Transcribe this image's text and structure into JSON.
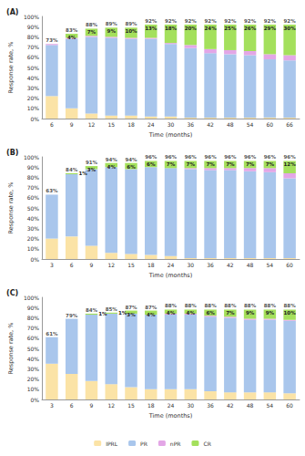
{
  "chart_data": [
    {
      "type": "bar",
      "title": "(A)",
      "x_label": "Time (months)",
      "y_label": "Response rate, %",
      "categories": [
        "6",
        "9",
        "12",
        "15",
        "18",
        "24",
        "30",
        "36",
        "42",
        "48",
        "54",
        "60",
        "66"
      ],
      "stacked": true,
      "data_labels": true,
      "grid": false,
      "ylim": [
        0,
        100
      ],
      "yticks": [
        {
          "value": 0,
          "label": "0%"
        },
        {
          "value": 10,
          "label": "10%"
        },
        {
          "value": 20,
          "label": "20%"
        },
        {
          "value": 30,
          "label": "30%"
        },
        {
          "value": 40,
          "label": "40%"
        },
        {
          "value": 50,
          "label": "50%"
        },
        {
          "value": 60,
          "label": "60%"
        },
        {
          "value": 70,
          "label": "70%"
        },
        {
          "value": 80,
          "label": "80%"
        },
        {
          "value": 90,
          "label": "90%"
        },
        {
          "value": 100,
          "label": "100%"
        }
      ],
      "total_labels": [
        "73%",
        "83%",
        "88%",
        "89%",
        "89%",
        "92%",
        "92%",
        "92%",
        "92%",
        "92%",
        "92%",
        "92%",
        "92%"
      ],
      "series": [
        {
          "name": "IPRL",
          "color": "#fbe3a6",
          "values": [
            22,
            10,
            5,
            3,
            3,
            2,
            2,
            1,
            1,
            1,
            1,
            1,
            1
          ]
        },
        {
          "name": "PR",
          "color": "#a9c6ec",
          "values": [
            50,
            68,
            75,
            76,
            75,
            76,
            71,
            68,
            63,
            62,
            61,
            57,
            56
          ]
        },
        {
          "name": "nPR",
          "color": "#e3a6e6",
          "values": [
            1,
            1,
            1,
            1,
            1,
            1,
            1,
            3,
            4,
            4,
            4,
            5,
            5
          ]
        },
        {
          "name": "CR",
          "color": "#a4e05c",
          "values": [
            0,
            4,
            7,
            9,
            10,
            13,
            18,
            20,
            24,
            25,
            26,
            29,
            30
          ],
          "value_labels": [
            null,
            "4%",
            "7%",
            "9%",
            "10%",
            "13%",
            "18%",
            "20%",
            "24%",
            "25%",
            "26%",
            "29%",
            "30%"
          ]
        }
      ]
    },
    {
      "type": "bar",
      "title": "(B)",
      "x_label": "Time (months)",
      "y_label": "Response rate, %",
      "categories": [
        "3",
        "6",
        "9",
        "12",
        "15",
        "18",
        "24",
        "30",
        "36",
        "42",
        "48",
        "54",
        "60"
      ],
      "stacked": true,
      "data_labels": true,
      "grid": false,
      "ylim": [
        0,
        100
      ],
      "yticks": [
        {
          "value": 0,
          "label": "0%"
        },
        {
          "value": 10,
          "label": "10%"
        },
        {
          "value": 20,
          "label": "20%"
        },
        {
          "value": 30,
          "label": "30%"
        },
        {
          "value": 40,
          "label": "40%"
        },
        {
          "value": 50,
          "label": "50%"
        },
        {
          "value": 60,
          "label": "60%"
        },
        {
          "value": 70,
          "label": "70%"
        },
        {
          "value": 80,
          "label": "80%"
        },
        {
          "value": 90,
          "label": "90%"
        },
        {
          "value": 100,
          "label": "100%"
        }
      ],
      "total_labels": [
        "63%",
        "84%",
        "91%",
        "94%",
        "94%",
        "96%",
        "96%",
        "96%",
        "96%",
        "96%",
        "96%",
        "96%",
        "96%"
      ],
      "series": [
        {
          "name": "IPRL",
          "color": "#fbe3a6",
          "values": [
            20,
            22,
            13,
            6,
            5,
            4,
            3,
            1,
            1,
            1,
            1,
            1,
            1
          ]
        },
        {
          "name": "PR",
          "color": "#a9c6ec",
          "values": [
            43,
            61,
            75,
            84,
            83,
            86,
            86,
            87,
            86,
            86,
            85,
            84,
            78
          ]
        },
        {
          "name": "nPR",
          "color": "#e3a6e6",
          "values": [
            0,
            0,
            0,
            0,
            0,
            0,
            0,
            1,
            2,
            2,
            3,
            4,
            5
          ]
        },
        {
          "name": "CR",
          "color": "#a4e05c",
          "values": [
            0,
            1,
            3,
            4,
            6,
            6,
            7,
            7,
            7,
            7,
            7,
            7,
            12
          ],
          "value_labels": [
            null,
            "1%",
            "3%",
            "4%",
            "6%",
            "6%",
            "7%",
            "7%",
            "7%",
            "7%",
            "7%",
            "7%",
            "12%"
          ]
        }
      ]
    },
    {
      "type": "bar",
      "title": "(C)",
      "x_label": "Time (months)",
      "y_label": "Response rate, %",
      "categories": [
        "3",
        "6",
        "9",
        "12",
        "15",
        "18",
        "24",
        "30",
        "36",
        "42",
        "48",
        "54",
        "60"
      ],
      "stacked": true,
      "data_labels": true,
      "grid": false,
      "legend": "bottom",
      "ylim": [
        0,
        100
      ],
      "yticks": [
        {
          "value": 0,
          "label": "0%"
        },
        {
          "value": 10,
          "label": "10%"
        },
        {
          "value": 20,
          "label": "20%"
        },
        {
          "value": 30,
          "label": "30%"
        },
        {
          "value": 40,
          "label": "40%"
        },
        {
          "value": 50,
          "label": "50%"
        },
        {
          "value": 60,
          "label": "60%"
        },
        {
          "value": 70,
          "label": "70%"
        },
        {
          "value": 80,
          "label": "80%"
        },
        {
          "value": 90,
          "label": "90%"
        },
        {
          "value": 100,
          "label": "100%"
        }
      ],
      "total_labels": [
        "61%",
        "79%",
        "84%",
        "85%",
        "87%",
        "87%",
        "88%",
        "88%",
        "88%",
        "88%",
        "88%",
        "88%",
        "88%"
      ],
      "series": [
        {
          "name": "IPRL",
          "color": "#fbe3a6",
          "values": [
            35,
            25,
            18,
            15,
            12,
            10,
            10,
            10,
            8,
            7,
            7,
            7,
            6
          ]
        },
        {
          "name": "PR",
          "color": "#a9c6ec",
          "values": [
            26,
            54,
            65,
            69,
            72,
            73,
            73,
            73,
            73,
            73,
            71,
            71,
            71
          ]
        },
        {
          "name": "nPR",
          "color": "#e3a6e6",
          "values": [
            0,
            0,
            0,
            0,
            0,
            0,
            1,
            1,
            1,
            1,
            1,
            1,
            1
          ]
        },
        {
          "name": "CR",
          "color": "#a4e05c",
          "values": [
            0,
            0,
            1,
            1,
            3,
            4,
            4,
            4,
            6,
            7,
            9,
            9,
            10
          ],
          "value_labels": [
            null,
            null,
            "1%",
            "1%",
            "3%",
            "4%",
            "4%",
            "4%",
            "6%",
            "7%",
            "9%",
            "9%",
            "10%"
          ]
        }
      ]
    }
  ]
}
